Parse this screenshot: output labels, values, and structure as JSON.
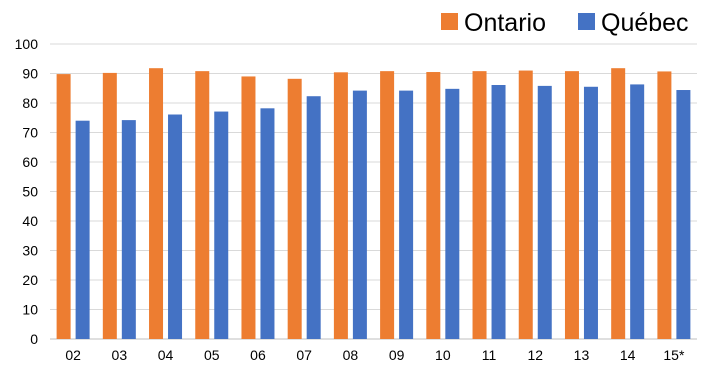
{
  "chart_data": {
    "type": "bar",
    "categories": [
      "02",
      "03",
      "04",
      "05",
      "06",
      "07",
      "08",
      "09",
      "10",
      "11",
      "12",
      "13",
      "14",
      "15*"
    ],
    "series": [
      {
        "name": "Ontario",
        "color": "#ED7D31",
        "values": [
          89.8,
          90.2,
          91.8,
          90.8,
          89.0,
          88.2,
          90.4,
          90.8,
          90.5,
          90.8,
          91.0,
          90.8,
          91.8,
          90.7
        ]
      },
      {
        "name": "Québec",
        "color": "#4472C4",
        "values": [
          74.0,
          74.2,
          76.1,
          77.1,
          78.2,
          82.3,
          84.2,
          84.2,
          84.8,
          86.1,
          85.8,
          85.5,
          86.3,
          84.4
        ]
      }
    ],
    "ylim": [
      0,
      100
    ],
    "yticks": [
      0,
      10,
      20,
      30,
      40,
      50,
      60,
      70,
      80,
      90,
      100
    ],
    "grid": true,
    "legend_position": "top-right"
  }
}
